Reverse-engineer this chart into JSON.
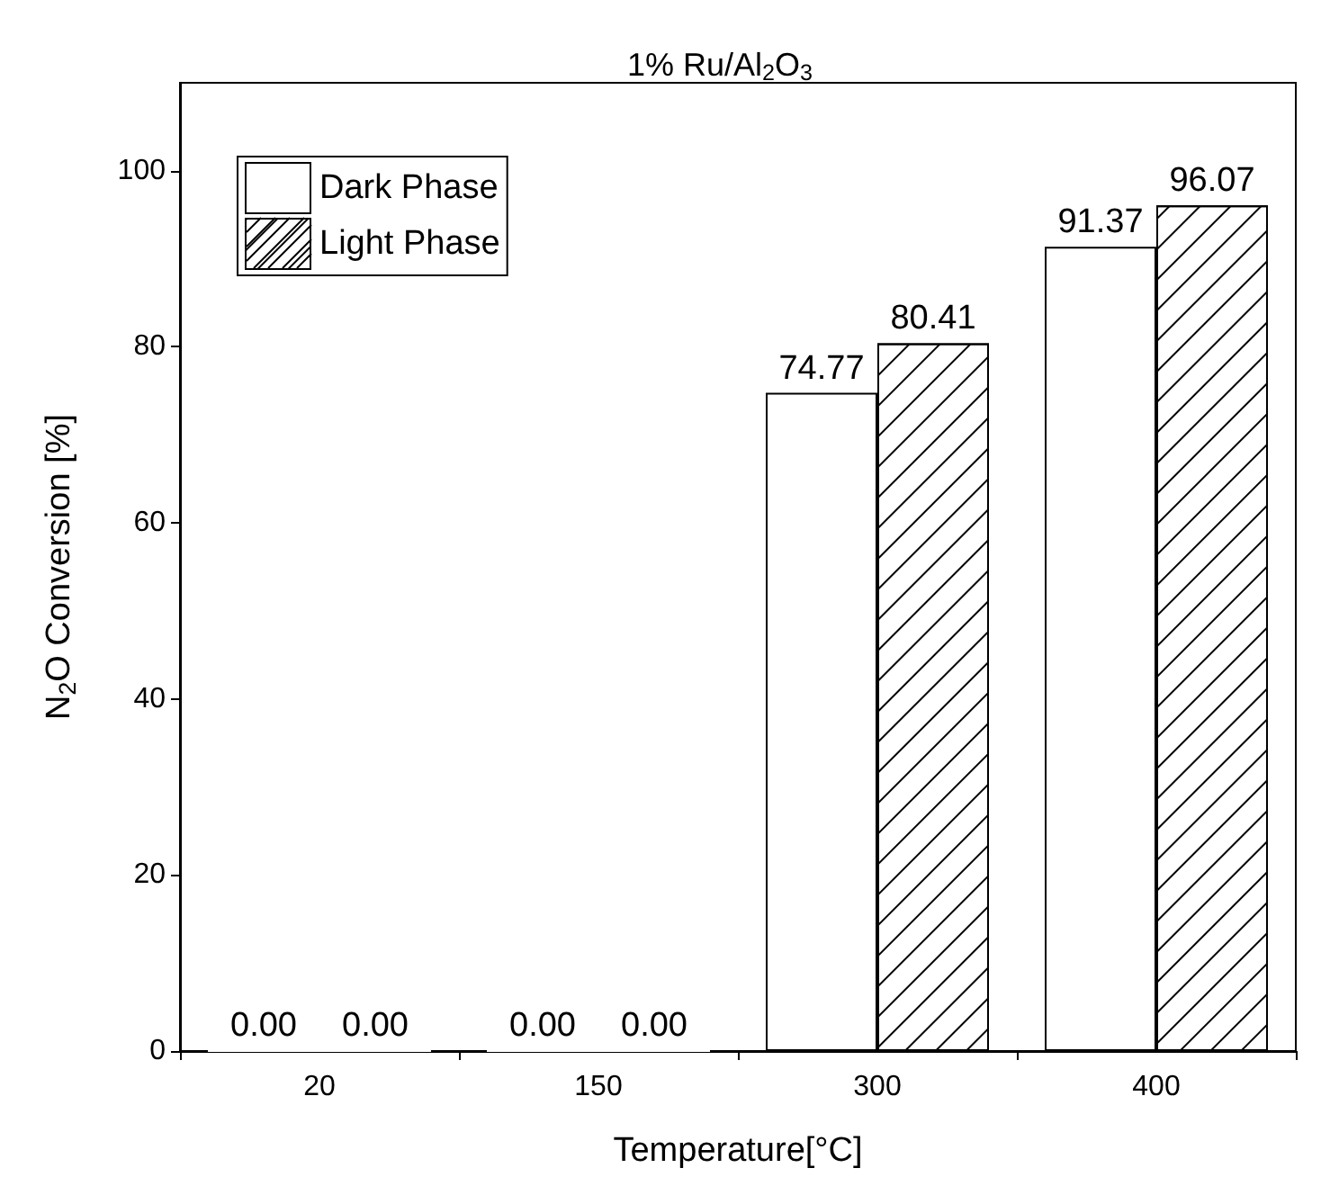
{
  "chart_data": {
    "type": "bar",
    "title": "1% Ru/Al$_{2}$O$_{3}$",
    "xlabel": "Temperature[°C]",
    "ylabel": "N$_{2}$O Conversion [%]",
    "categories": [
      "20",
      "150",
      "300",
      "400"
    ],
    "series": [
      {
        "name": "Dark Phase",
        "color": "#ffffff",
        "values": [
          0,
          0,
          74.77,
          91.37
        ],
        "value_labels": [
          "0.00",
          "0.00",
          "74.77",
          "91.37"
        ]
      },
      {
        "name": "Light Phase",
        "color": "#ffffff",
        "values": [
          0,
          0,
          80.41,
          96.07
        ],
        "value_labels": [
          "0.00",
          "0.00",
          "80.41",
          "96.07"
        ]
      }
    ],
    "ylim": [
      0,
      110
    ],
    "yticks": [
      0,
      20,
      40,
      60,
      80,
      100
    ],
    "grid": false,
    "legend": "top left"
  }
}
